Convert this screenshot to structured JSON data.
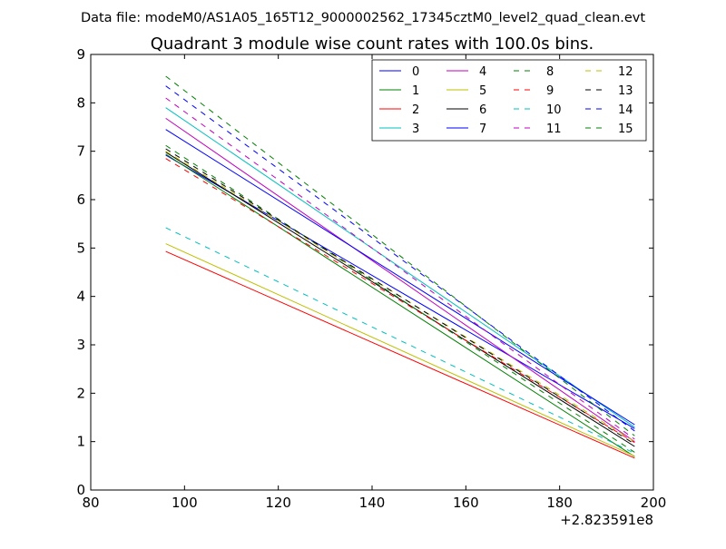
{
  "suptitle": "Data file: modeM0/AS1A05_165T12_9000002562_17345cztM0_level2_quad_clean.evt",
  "chart_data": {
    "type": "line",
    "title": "Quadrant 3 module wise count rates with 100.0s bins.",
    "xlabel": "",
    "ylabel": "",
    "x_offset_label": "+2.823591e8",
    "xlim": [
      80,
      200
    ],
    "ylim": [
      0,
      9
    ],
    "xticks": [
      80,
      100,
      120,
      140,
      160,
      180,
      200
    ],
    "yticks": [
      0,
      1,
      2,
      3,
      4,
      5,
      6,
      7,
      8,
      9
    ],
    "grid": false,
    "legend_position": "top-right",
    "legend_columns": 4,
    "x": [
      96,
      196
    ],
    "series": [
      {
        "name": "0",
        "color": "#0000ff",
        "style": "solid",
        "values": [
          6.92,
          1.27
        ]
      },
      {
        "name": "1",
        "color": "#008000",
        "style": "solid",
        "values": [
          6.94,
          0.69
        ]
      },
      {
        "name": "2",
        "color": "#ff0000",
        "style": "solid",
        "values": [
          4.93,
          0.66
        ]
      },
      {
        "name": "3",
        "color": "#00bfbf",
        "style": "solid",
        "values": [
          7.9,
          1.3
        ]
      },
      {
        "name": "4",
        "color": "#bf00bf",
        "style": "solid",
        "values": [
          7.68,
          1.0
        ]
      },
      {
        "name": "5",
        "color": "#bfbf00",
        "style": "solid",
        "values": [
          5.09,
          0.7
        ]
      },
      {
        "name": "6",
        "color": "#000000",
        "style": "solid",
        "values": [
          6.98,
          0.9
        ]
      },
      {
        "name": "7",
        "color": "#0000ff",
        "style": "solid",
        "values": [
          7.45,
          1.35
        ]
      },
      {
        "name": "8",
        "color": "#008000",
        "style": "dashed",
        "values": [
          7.12,
          0.78
        ]
      },
      {
        "name": "9",
        "color": "#ff0000",
        "style": "dashed",
        "values": [
          6.85,
          0.98
        ]
      },
      {
        "name": "10",
        "color": "#00bfbf",
        "style": "dashed",
        "values": [
          5.42,
          0.76
        ]
      },
      {
        "name": "11",
        "color": "#bf00bf",
        "style": "dashed",
        "values": [
          8.1,
          1.05
        ]
      },
      {
        "name": "12",
        "color": "#bfbf00",
        "style": "dashed",
        "values": [
          7.0,
          1.0
        ]
      },
      {
        "name": "13",
        "color": "#000000",
        "style": "dashed",
        "values": [
          7.05,
          0.95
        ]
      },
      {
        "name": "14",
        "color": "#0000ff",
        "style": "dashed",
        "values": [
          8.35,
          1.22
        ]
      },
      {
        "name": "15",
        "color": "#008000",
        "style": "dashed",
        "values": [
          8.55,
          1.12
        ]
      }
    ]
  }
}
